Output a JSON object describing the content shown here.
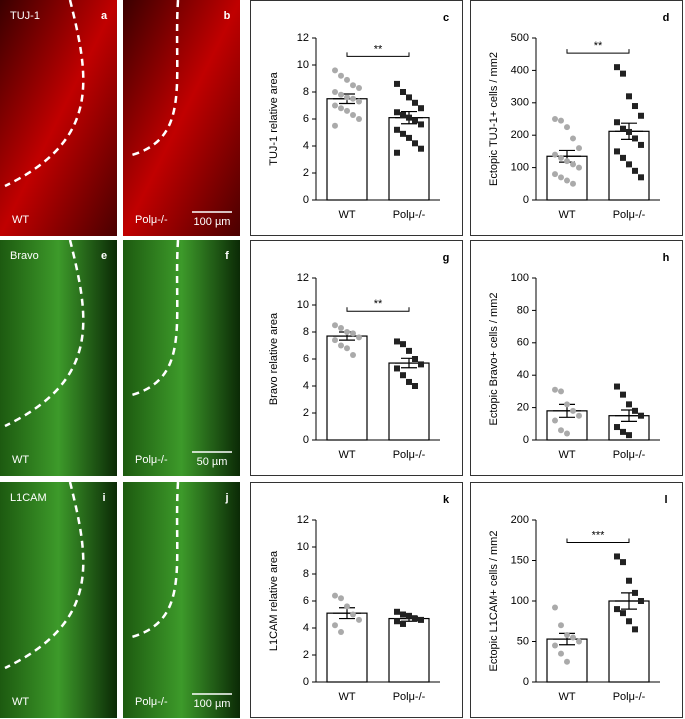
{
  "panels": [
    {
      "stain": "TUJ-1",
      "left_letter": "a",
      "right_letter": "b",
      "left_label": "WT",
      "right_label": "Polμ-/-",
      "scale_bar": "100 µm"
    },
    {
      "stain": "Bravo",
      "left_letter": "e",
      "right_letter": "f",
      "left_label": "WT",
      "right_label": "Polμ-/-",
      "scale_bar": "50 µm"
    },
    {
      "stain": "L1CAM",
      "left_letter": "i",
      "right_letter": "j",
      "left_label": "WT",
      "right_label": "Polμ-/-",
      "scale_bar": "100 µm"
    }
  ],
  "chart_data": [
    {
      "type": "bar",
      "letter": "c",
      "ylabel": "TUJ-1 relative area",
      "categories": [
        "WT",
        "Polμ-/-"
      ],
      "values": [
        7.5,
        6.1
      ],
      "errors": [
        0.35,
        0.45
      ],
      "points": [
        [
          9.6,
          9.2,
          8.9,
          8.5,
          8.3,
          8.0,
          7.8,
          7.6,
          7.5,
          7.3,
          7.0,
          6.8,
          6.6,
          6.3,
          6.0,
          5.5
        ],
        [
          8.6,
          8.0,
          7.6,
          7.2,
          6.8,
          6.5,
          6.3,
          6.1,
          5.9,
          5.6,
          5.2,
          4.9,
          4.6,
          4.2,
          3.8,
          3.5
        ]
      ],
      "ylim": [
        0,
        12
      ],
      "yticks": [
        0,
        2,
        4,
        6,
        8,
        10,
        12
      ],
      "significance": "**"
    },
    {
      "type": "bar",
      "letter": "d",
      "ylabel": "Ectopic TUJ-1+ cells / mm2",
      "categories": [
        "WT",
        "Polμ-/-"
      ],
      "values": [
        135,
        212
      ],
      "errors": [
        18,
        25
      ],
      "points": [
        [
          250,
          245,
          225,
          190,
          160,
          140,
          130,
          120,
          110,
          100,
          80,
          70,
          60,
          50
        ],
        [
          410,
          390,
          320,
          290,
          260,
          240,
          220,
          210,
          190,
          170,
          150,
          130,
          110,
          90,
          70
        ]
      ],
      "ylim": [
        0,
        500
      ],
      "yticks": [
        0,
        100,
        200,
        300,
        400,
        500
      ],
      "significance": "**"
    },
    {
      "type": "bar",
      "letter": "g",
      "ylabel": "Bravo relative area",
      "categories": [
        "WT",
        "Polμ-/-"
      ],
      "values": [
        7.7,
        5.7
      ],
      "errors": [
        0.3,
        0.35
      ],
      "points": [
        [
          8.5,
          8.3,
          8.0,
          7.9,
          7.6,
          7.4,
          7.0,
          6.8,
          6.3
        ],
        [
          7.3,
          7.1,
          6.6,
          6.0,
          5.6,
          5.3,
          4.8,
          4.3,
          4.0
        ]
      ],
      "ylim": [
        0,
        12
      ],
      "yticks": [
        0,
        2,
        4,
        6,
        8,
        10,
        12
      ],
      "significance": "**"
    },
    {
      "type": "bar",
      "letter": "h",
      "ylabel": "Ectopic Bravo+ cells / mm2",
      "categories": [
        "WT",
        "Polμ-/-"
      ],
      "values": [
        18,
        15
      ],
      "errors": [
        4,
        3.5
      ],
      "points": [
        [
          31,
          30,
          22,
          18,
          15,
          12,
          6,
          4
        ],
        [
          33,
          28,
          22,
          18,
          15,
          8,
          5,
          3
        ]
      ],
      "ylim": [
        0,
        100
      ],
      "yticks": [
        0,
        20,
        40,
        60,
        80,
        100
      ]
    },
    {
      "type": "bar",
      "letter": "k",
      "ylabel": "L1CAM relative area",
      "categories": [
        "WT",
        "Polμ-/-"
      ],
      "values": [
        5.1,
        4.7
      ],
      "errors": [
        0.4,
        0.2
      ],
      "points": [
        [
          6.4,
          6.2,
          5.6,
          5.0,
          4.6,
          4.2,
          3.7
        ],
        [
          5.2,
          5.0,
          4.9,
          4.7,
          4.6,
          4.5,
          4.3
        ]
      ],
      "ylim": [
        0,
        12
      ],
      "yticks": [
        0,
        2,
        4,
        6,
        8,
        10,
        12
      ]
    },
    {
      "type": "bar",
      "letter": "l",
      "ylabel": "Ectopic L1CAM+ cells / mm2",
      "categories": [
        "WT",
        "Polμ-/-"
      ],
      "values": [
        53,
        100
      ],
      "errors": [
        7,
        10
      ],
      "points": [
        [
          92,
          70,
          58,
          55,
          50,
          45,
          35,
          25
        ],
        [
          155,
          148,
          125,
          110,
          100,
          90,
          85,
          75,
          65
        ]
      ],
      "ylim": [
        0,
        200
      ],
      "yticks": [
        0,
        50,
        100,
        150,
        200
      ],
      "significance": "***"
    }
  ]
}
